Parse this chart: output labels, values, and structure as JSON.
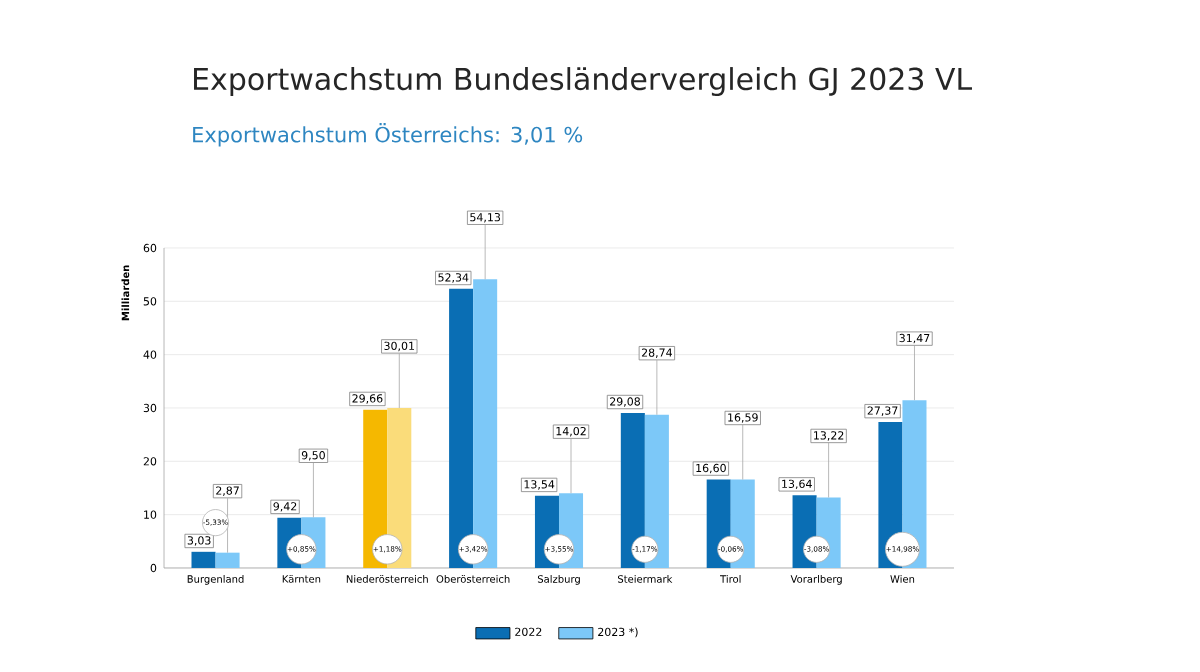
{
  "chart_data": {
    "type": "bar",
    "title": "Exportwachstum Bundesländervergleich GJ 2023 VL",
    "subtitle": "Exportwachstum Österreichs: 3,01 %",
    "ylabel": "Milliarden",
    "categories": [
      "Burgenland",
      "Kärnten",
      "Niederösterreich",
      "Oberösterreich",
      "Salzburg",
      "Steiermark",
      "Tirol",
      "Vorarlberg",
      "Wien"
    ],
    "series": [
      {
        "name": "2022",
        "color": "#0a6eb4",
        "colors": [
          "#0a6eb4",
          "#0a6eb4",
          "#f5b800",
          "#0a6eb4",
          "#0a6eb4",
          "#0a6eb4",
          "#0a6eb4",
          "#0a6eb4",
          "#0a6eb4"
        ],
        "values": [
          3.03,
          9.42,
          29.66,
          52.34,
          13.54,
          29.08,
          16.6,
          13.64,
          27.37
        ],
        "value_labels": [
          "3,03",
          "9,42",
          "29,66",
          "52,34",
          "13,54",
          "29,08",
          "16,60",
          "13,64",
          "27,37"
        ]
      },
      {
        "name": "2023 *)",
        "color": "#7cc8f8",
        "colors": [
          "#7cc8f8",
          "#7cc8f8",
          "#fadc7a",
          "#7cc8f8",
          "#7cc8f8",
          "#7cc8f8",
          "#7cc8f8",
          "#7cc8f8",
          "#7cc8f8"
        ],
        "values": [
          2.87,
          9.5,
          30.01,
          54.13,
          14.02,
          28.74,
          16.59,
          13.22,
          31.47
        ],
        "value_labels": [
          "2,87",
          "9,50",
          "30,01",
          "54,13",
          "14,02",
          "28,74",
          "16,59",
          "13,22",
          "31,47"
        ]
      }
    ],
    "annotations": [
      {
        "text": "-5,33%",
        "x": "Burgenland",
        "y": 8.5
      },
      {
        "text": "+0,85%",
        "x": "Kärnten",
        "y": 3.5
      },
      {
        "text": "+1,18%",
        "x": "Niederösterreich",
        "y": 3.5
      },
      {
        "text": "+3,42%",
        "x": "Oberösterreich",
        "y": 3.5
      },
      {
        "text": "+3,55%",
        "x": "Salzburg",
        "y": 3.5
      },
      {
        "text": "-1,17%",
        "x": "Steiermark",
        "y": 3.5
      },
      {
        "text": "-0,06%",
        "x": "Tirol",
        "y": 3.5
      },
      {
        "text": "-3,08%",
        "x": "Vorarlberg",
        "y": 3.5
      },
      {
        "text": "+14,98%",
        "x": "Wien",
        "y": 3.5
      }
    ],
    "ylim": [
      0,
      60
    ],
    "yticks": [
      0,
      10,
      20,
      30,
      40,
      50,
      60
    ],
    "grid": "y",
    "legend": "bottom"
  }
}
